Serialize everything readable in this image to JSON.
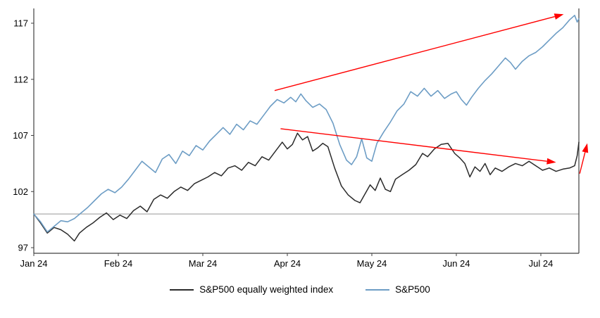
{
  "chart_data": {
    "type": "line",
    "title": "",
    "xlabel": "",
    "ylabel": "",
    "x_tick_labels": [
      "Jan 24",
      "Feb 24",
      "Mar 24",
      "Apr 24",
      "May 24",
      "Jun 24",
      "Jul 24"
    ],
    "x_tick_positions": [
      0,
      1,
      2,
      3,
      4,
      5,
      6
    ],
    "y_ticks": [
      97,
      102,
      107,
      112,
      117
    ],
    "y_range": [
      96.5,
      118.1
    ],
    "x_range": [
      0,
      6.45
    ],
    "baseline_value": 100,
    "grid": "baseline-only",
    "legend_position": "bottom-center",
    "colors": {
      "equal_weight_line": "#2b2b2b",
      "sp500_line": "#6d9dc5",
      "annotation_red": "#ff0000",
      "baseline_gray": "#999999",
      "axis": "#404040"
    },
    "series": [
      {
        "name": "S&P500 equally weighted index",
        "color": "#2b2b2b",
        "width": 1.5,
        "points": [
          [
            0,
            100
          ],
          [
            0.08,
            99.2
          ],
          [
            0.16,
            98.3
          ],
          [
            0.24,
            98.8
          ],
          [
            0.32,
            98.6
          ],
          [
            0.4,
            98.2
          ],
          [
            0.48,
            97.6
          ],
          [
            0.54,
            98.3
          ],
          [
            0.62,
            98.8
          ],
          [
            0.7,
            99.2
          ],
          [
            0.78,
            99.7
          ],
          [
            0.86,
            100.1
          ],
          [
            0.94,
            99.5
          ],
          [
            1.02,
            99.9
          ],
          [
            1.1,
            99.6
          ],
          [
            1.18,
            100.3
          ],
          [
            1.26,
            100.7
          ],
          [
            1.34,
            100.2
          ],
          [
            1.42,
            101.3
          ],
          [
            1.5,
            101.7
          ],
          [
            1.58,
            101.4
          ],
          [
            1.66,
            102.0
          ],
          [
            1.74,
            102.4
          ],
          [
            1.82,
            102.1
          ],
          [
            1.9,
            102.7
          ],
          [
            1.98,
            103.0
          ],
          [
            2.06,
            103.3
          ],
          [
            2.14,
            103.7
          ],
          [
            2.22,
            103.4
          ],
          [
            2.3,
            104.1
          ],
          [
            2.38,
            104.3
          ],
          [
            2.46,
            103.9
          ],
          [
            2.54,
            104.6
          ],
          [
            2.62,
            104.3
          ],
          [
            2.7,
            105.1
          ],
          [
            2.78,
            104.8
          ],
          [
            2.86,
            105.6
          ],
          [
            2.94,
            106.4
          ],
          [
            3.0,
            105.8
          ],
          [
            3.06,
            106.2
          ],
          [
            3.12,
            107.2
          ],
          [
            3.18,
            106.6
          ],
          [
            3.24,
            106.9
          ],
          [
            3.3,
            105.6
          ],
          [
            3.36,
            105.9
          ],
          [
            3.42,
            106.3
          ],
          [
            3.48,
            106.0
          ],
          [
            3.56,
            104.1
          ],
          [
            3.64,
            102.5
          ],
          [
            3.72,
            101.7
          ],
          [
            3.8,
            101.2
          ],
          [
            3.86,
            101.0
          ],
          [
            3.92,
            101.8
          ],
          [
            3.98,
            102.6
          ],
          [
            4.04,
            102.1
          ],
          [
            4.1,
            103.2
          ],
          [
            4.16,
            102.2
          ],
          [
            4.22,
            102.0
          ],
          [
            4.28,
            103.1
          ],
          [
            4.36,
            103.5
          ],
          [
            4.44,
            103.9
          ],
          [
            4.52,
            104.4
          ],
          [
            4.6,
            105.4
          ],
          [
            4.66,
            105.1
          ],
          [
            4.74,
            105.8
          ],
          [
            4.82,
            106.2
          ],
          [
            4.9,
            106.3
          ],
          [
            4.98,
            105.4
          ],
          [
            5.04,
            105.0
          ],
          [
            5.1,
            104.5
          ],
          [
            5.16,
            103.3
          ],
          [
            5.22,
            104.2
          ],
          [
            5.28,
            103.8
          ],
          [
            5.34,
            104.5
          ],
          [
            5.4,
            103.5
          ],
          [
            5.46,
            104.1
          ],
          [
            5.54,
            103.8
          ],
          [
            5.62,
            104.2
          ],
          [
            5.7,
            104.5
          ],
          [
            5.78,
            104.3
          ],
          [
            5.86,
            104.7
          ],
          [
            5.94,
            104.3
          ],
          [
            6.02,
            103.9
          ],
          [
            6.1,
            104.1
          ],
          [
            6.18,
            103.8
          ],
          [
            6.26,
            104.0
          ],
          [
            6.34,
            104.1
          ],
          [
            6.4,
            104.3
          ],
          [
            6.43,
            105.2
          ],
          [
            6.45,
            106.4
          ]
        ]
      },
      {
        "name": "S&P500",
        "color": "#6d9dc5",
        "width": 1.6,
        "points": [
          [
            0,
            100
          ],
          [
            0.08,
            99.3
          ],
          [
            0.16,
            98.4
          ],
          [
            0.24,
            98.9
          ],
          [
            0.32,
            99.4
          ],
          [
            0.4,
            99.3
          ],
          [
            0.48,
            99.6
          ],
          [
            0.56,
            100.1
          ],
          [
            0.64,
            100.6
          ],
          [
            0.72,
            101.2
          ],
          [
            0.8,
            101.8
          ],
          [
            0.88,
            102.2
          ],
          [
            0.96,
            101.9
          ],
          [
            1.04,
            102.4
          ],
          [
            1.12,
            103.1
          ],
          [
            1.2,
            103.9
          ],
          [
            1.28,
            104.7
          ],
          [
            1.36,
            104.2
          ],
          [
            1.44,
            103.7
          ],
          [
            1.52,
            104.9
          ],
          [
            1.6,
            105.3
          ],
          [
            1.68,
            104.5
          ],
          [
            1.76,
            105.6
          ],
          [
            1.84,
            105.2
          ],
          [
            1.92,
            106.1
          ],
          [
            2.0,
            105.7
          ],
          [
            2.08,
            106.5
          ],
          [
            2.16,
            107.1
          ],
          [
            2.24,
            107.7
          ],
          [
            2.32,
            107.1
          ],
          [
            2.4,
            108.0
          ],
          [
            2.48,
            107.5
          ],
          [
            2.56,
            108.3
          ],
          [
            2.64,
            108.0
          ],
          [
            2.72,
            108.8
          ],
          [
            2.8,
            109.6
          ],
          [
            2.88,
            110.2
          ],
          [
            2.96,
            109.9
          ],
          [
            3.04,
            110.4
          ],
          [
            3.1,
            110.0
          ],
          [
            3.16,
            110.7
          ],
          [
            3.22,
            110.1
          ],
          [
            3.3,
            109.5
          ],
          [
            3.38,
            109.8
          ],
          [
            3.46,
            109.3
          ],
          [
            3.54,
            108.1
          ],
          [
            3.62,
            106.2
          ],
          [
            3.7,
            104.8
          ],
          [
            3.76,
            104.4
          ],
          [
            3.82,
            105.1
          ],
          [
            3.88,
            106.7
          ],
          [
            3.94,
            105.0
          ],
          [
            4.0,
            104.7
          ],
          [
            4.06,
            106.3
          ],
          [
            4.14,
            107.3
          ],
          [
            4.22,
            108.2
          ],
          [
            4.3,
            109.2
          ],
          [
            4.38,
            109.8
          ],
          [
            4.46,
            110.9
          ],
          [
            4.54,
            110.5
          ],
          [
            4.62,
            111.2
          ],
          [
            4.7,
            110.5
          ],
          [
            4.78,
            111.0
          ],
          [
            4.86,
            110.3
          ],
          [
            4.94,
            110.7
          ],
          [
            5.0,
            110.9
          ],
          [
            5.06,
            110.2
          ],
          [
            5.12,
            109.7
          ],
          [
            5.18,
            110.4
          ],
          [
            5.26,
            111.2
          ],
          [
            5.34,
            111.9
          ],
          [
            5.42,
            112.5
          ],
          [
            5.5,
            113.2
          ],
          [
            5.58,
            113.9
          ],
          [
            5.64,
            113.5
          ],
          [
            5.7,
            112.9
          ],
          [
            5.78,
            113.6
          ],
          [
            5.86,
            114.1
          ],
          [
            5.94,
            114.4
          ],
          [
            6.02,
            114.9
          ],
          [
            6.1,
            115.5
          ],
          [
            6.18,
            116.1
          ],
          [
            6.26,
            116.6
          ],
          [
            6.34,
            117.3
          ],
          [
            6.4,
            117.7
          ],
          [
            6.43,
            117.1
          ],
          [
            6.45,
            117.4
          ]
        ]
      }
    ],
    "annotations": {
      "color": "#ff0000",
      "arrows": [
        {
          "x1": 2.85,
          "y1": 111.0,
          "x2": 6.27,
          "y2": 117.8
        },
        {
          "x1": 2.92,
          "y1": 107.6,
          "x2": 6.18,
          "y2": 104.6
        },
        {
          "x1": 6.46,
          "y1": 103.6,
          "x2": 6.55,
          "y2": 106.3
        }
      ]
    },
    "legend": [
      {
        "label": "S&P500 equally weighted index",
        "color": "#2b2b2b"
      },
      {
        "label": "S&P500",
        "color": "#6d9dc5"
      }
    ]
  }
}
